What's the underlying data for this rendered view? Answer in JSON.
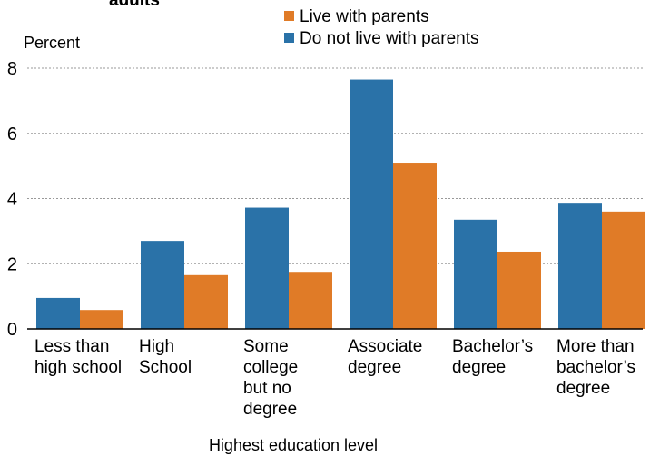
{
  "chart_data": {
    "type": "bar",
    "title_fragment": "adults",
    "ylabel": "Percent",
    "xlabel": "Highest education level",
    "ylim": [
      0,
      8
    ],
    "yticks": [
      0,
      2,
      4,
      6,
      8
    ],
    "grid": true,
    "legend_position": "top",
    "categories": [
      [
        "Less than",
        "high school"
      ],
      [
        "High",
        "School"
      ],
      [
        "Some",
        "college",
        "but no",
        "degree"
      ],
      [
        "Associate",
        "degree"
      ],
      [
        "Bachelor’s",
        "degree"
      ],
      [
        "More than",
        "bachelor’s",
        "degree"
      ]
    ],
    "series": [
      {
        "name": "Do not live with parents",
        "color": "#2a72a8",
        "values": [
          0.95,
          2.7,
          3.72,
          7.65,
          3.35,
          3.87
        ]
      },
      {
        "name": "Live with parents",
        "color": "#e07b27",
        "values": [
          0.58,
          1.65,
          1.75,
          5.1,
          2.37,
          3.6
        ]
      }
    ],
    "legend_order": [
      "Live with parents",
      "Do not live with parents"
    ]
  }
}
